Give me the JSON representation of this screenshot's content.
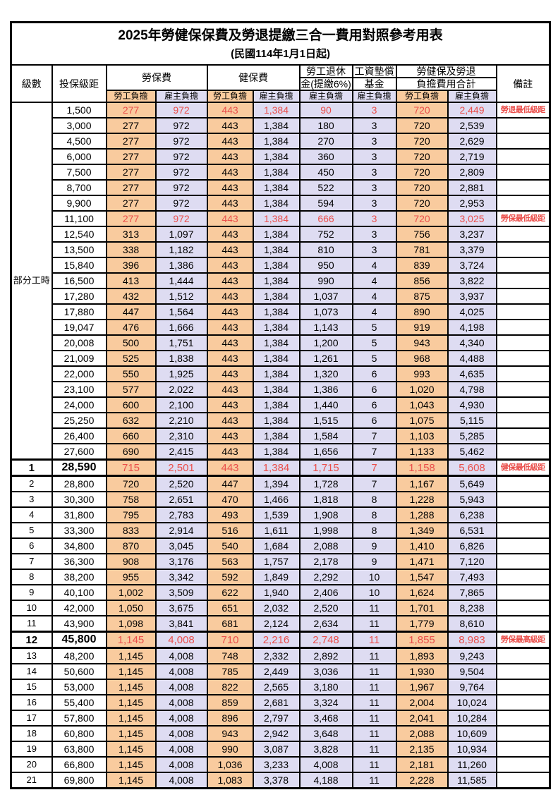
{
  "title": "2025年勞健保保費及勞退提繳三合一費用對照參考用表",
  "subtitle": "(民國114年1月1日起)",
  "colors": {
    "employee_column_bg": "#F9CB9E",
    "employer_column_bg": "#DEDCF2",
    "highlight_text": "#EA4F4B",
    "grid_line": "#000000"
  },
  "header": {
    "level": "級數",
    "salary": "投保級距",
    "labor_insurance": "勞保費",
    "health_insurance": "健保費",
    "pension_line1": "勞工退休",
    "pension_line2": "金(提繳6%)",
    "wage_fund_line1": "工資墊償",
    "wage_fund_line2": "基金",
    "total_line1": "勞健保及勞退",
    "total_line2": "負擔費用合計",
    "remark": "備註",
    "employee": "勞工負擔",
    "employer": "雇主負擔"
  },
  "group_label": "部分工時",
  "rows": [
    {
      "level": "",
      "salary": "1,500",
      "values": [
        "277",
        "972",
        "443",
        "1,384",
        "90",
        "3",
        "720",
        "2,449"
      ],
      "remark": "勞退最低級距",
      "red": true,
      "em": false
    },
    {
      "level": "",
      "salary": "3,000",
      "values": [
        "277",
        "972",
        "443",
        "1,384",
        "180",
        "3",
        "720",
        "2,539"
      ],
      "remark": "",
      "red": false,
      "em": false
    },
    {
      "level": "",
      "salary": "4,500",
      "values": [
        "277",
        "972",
        "443",
        "1,384",
        "270",
        "3",
        "720",
        "2,629"
      ],
      "remark": "",
      "red": false,
      "em": false
    },
    {
      "level": "",
      "salary": "6,000",
      "values": [
        "277",
        "972",
        "443",
        "1,384",
        "360",
        "3",
        "720",
        "2,719"
      ],
      "remark": "",
      "red": false,
      "em": false
    },
    {
      "level": "",
      "salary": "7,500",
      "values": [
        "277",
        "972",
        "443",
        "1,384",
        "450",
        "3",
        "720",
        "2,809"
      ],
      "remark": "",
      "red": false,
      "em": false
    },
    {
      "level": "",
      "salary": "8,700",
      "values": [
        "277",
        "972",
        "443",
        "1,384",
        "522",
        "3",
        "720",
        "2,881"
      ],
      "remark": "",
      "red": false,
      "em": false
    },
    {
      "level": "",
      "salary": "9,900",
      "values": [
        "277",
        "972",
        "443",
        "1,384",
        "594",
        "3",
        "720",
        "2,953"
      ],
      "remark": "",
      "red": false,
      "em": false
    },
    {
      "level": "",
      "salary": "11,100",
      "values": [
        "277",
        "972",
        "443",
        "1,384",
        "666",
        "3",
        "720",
        "3,025"
      ],
      "remark": "勞保最低級距",
      "red": true,
      "em": false
    },
    {
      "level": "",
      "salary": "12,540",
      "values": [
        "313",
        "1,097",
        "443",
        "1,384",
        "752",
        "3",
        "756",
        "3,237"
      ],
      "remark": "",
      "red": false,
      "em": false
    },
    {
      "level": "",
      "salary": "13,500",
      "values": [
        "338",
        "1,182",
        "443",
        "1,384",
        "810",
        "3",
        "781",
        "3,379"
      ],
      "remark": "",
      "red": false,
      "em": false
    },
    {
      "level": "",
      "salary": "15,840",
      "values": [
        "396",
        "1,386",
        "443",
        "1,384",
        "950",
        "4",
        "839",
        "3,724"
      ],
      "remark": "",
      "red": false,
      "em": false
    },
    {
      "level": "",
      "salary": "16,500",
      "values": [
        "413",
        "1,444",
        "443",
        "1,384",
        "990",
        "4",
        "856",
        "3,822"
      ],
      "remark": "",
      "red": false,
      "em": false
    },
    {
      "level": "",
      "salary": "17,280",
      "values": [
        "432",
        "1,512",
        "443",
        "1,384",
        "1,037",
        "4",
        "875",
        "3,937"
      ],
      "remark": "",
      "red": false,
      "em": false
    },
    {
      "level": "",
      "salary": "17,880",
      "values": [
        "447",
        "1,564",
        "443",
        "1,384",
        "1,073",
        "4",
        "890",
        "4,025"
      ],
      "remark": "",
      "red": false,
      "em": false
    },
    {
      "level": "",
      "salary": "19,047",
      "values": [
        "476",
        "1,666",
        "443",
        "1,384",
        "1,143",
        "5",
        "919",
        "4,198"
      ],
      "remark": "",
      "red": false,
      "em": false
    },
    {
      "level": "",
      "salary": "20,008",
      "values": [
        "500",
        "1,751",
        "443",
        "1,384",
        "1,200",
        "5",
        "943",
        "4,340"
      ],
      "remark": "",
      "red": false,
      "em": false
    },
    {
      "level": "",
      "salary": "21,009",
      "values": [
        "525",
        "1,838",
        "443",
        "1,384",
        "1,261",
        "5",
        "968",
        "4,488"
      ],
      "remark": "",
      "red": false,
      "em": false
    },
    {
      "level": "",
      "salary": "22,000",
      "values": [
        "550",
        "1,925",
        "443",
        "1,384",
        "1,320",
        "6",
        "993",
        "4,635"
      ],
      "remark": "",
      "red": false,
      "em": false
    },
    {
      "level": "",
      "salary": "23,100",
      "values": [
        "577",
        "2,022",
        "443",
        "1,384",
        "1,386",
        "6",
        "1,020",
        "4,798"
      ],
      "remark": "",
      "red": false,
      "em": false
    },
    {
      "level": "",
      "salary": "24,000",
      "values": [
        "600",
        "2,100",
        "443",
        "1,384",
        "1,440",
        "6",
        "1,043",
        "4,930"
      ],
      "remark": "",
      "red": false,
      "em": false
    },
    {
      "level": "",
      "salary": "25,250",
      "values": [
        "632",
        "2,210",
        "443",
        "1,384",
        "1,515",
        "6",
        "1,075",
        "5,115"
      ],
      "remark": "",
      "red": false,
      "em": false
    },
    {
      "level": "",
      "salary": "26,400",
      "values": [
        "660",
        "2,310",
        "443",
        "1,384",
        "1,584",
        "7",
        "1,103",
        "5,285"
      ],
      "remark": "",
      "red": false,
      "em": false
    },
    {
      "level": "",
      "salary": "27,600",
      "values": [
        "690",
        "2,415",
        "443",
        "1,384",
        "1,656",
        "7",
        "1,133",
        "5,462"
      ],
      "remark": "",
      "red": false,
      "em": false
    },
    {
      "level": "1",
      "salary": "28,590",
      "values": [
        "715",
        "2,501",
        "443",
        "1,384",
        "1,715",
        "7",
        "1,158",
        "5,608"
      ],
      "remark": "健保最低級距",
      "red": true,
      "em": true
    },
    {
      "level": "2",
      "salary": "28,800",
      "values": [
        "720",
        "2,520",
        "447",
        "1,394",
        "1,728",
        "7",
        "1,167",
        "5,649"
      ],
      "remark": "",
      "red": false,
      "em": false
    },
    {
      "level": "3",
      "salary": "30,300",
      "values": [
        "758",
        "2,651",
        "470",
        "1,466",
        "1,818",
        "8",
        "1,228",
        "5,943"
      ],
      "remark": "",
      "red": false,
      "em": false
    },
    {
      "level": "4",
      "salary": "31,800",
      "values": [
        "795",
        "2,783",
        "493",
        "1,539",
        "1,908",
        "8",
        "1,288",
        "6,238"
      ],
      "remark": "",
      "red": false,
      "em": false
    },
    {
      "level": "5",
      "salary": "33,300",
      "values": [
        "833",
        "2,914",
        "516",
        "1,611",
        "1,998",
        "8",
        "1,349",
        "6,531"
      ],
      "remark": "",
      "red": false,
      "em": false
    },
    {
      "level": "6",
      "salary": "34,800",
      "values": [
        "870",
        "3,045",
        "540",
        "1,684",
        "2,088",
        "9",
        "1,410",
        "6,826"
      ],
      "remark": "",
      "red": false,
      "em": false
    },
    {
      "level": "7",
      "salary": "36,300",
      "values": [
        "908",
        "3,176",
        "563",
        "1,757",
        "2,178",
        "9",
        "1,471",
        "7,120"
      ],
      "remark": "",
      "red": false,
      "em": false
    },
    {
      "level": "8",
      "salary": "38,200",
      "values": [
        "955",
        "3,342",
        "592",
        "1,849",
        "2,292",
        "10",
        "1,547",
        "7,493"
      ],
      "remark": "",
      "red": false,
      "em": false
    },
    {
      "level": "9",
      "salary": "40,100",
      "values": [
        "1,002",
        "3,509",
        "622",
        "1,940",
        "2,406",
        "10",
        "1,624",
        "7,865"
      ],
      "remark": "",
      "red": false,
      "em": false
    },
    {
      "level": "10",
      "salary": "42,000",
      "values": [
        "1,050",
        "3,675",
        "651",
        "2,032",
        "2,520",
        "11",
        "1,701",
        "8,238"
      ],
      "remark": "",
      "red": false,
      "em": false
    },
    {
      "level": "11",
      "salary": "43,900",
      "values": [
        "1,098",
        "3,841",
        "681",
        "2,124",
        "2,634",
        "11",
        "1,779",
        "8,610"
      ],
      "remark": "",
      "red": false,
      "em": false
    },
    {
      "level": "12",
      "salary": "45,800",
      "values": [
        "1,145",
        "4,008",
        "710",
        "2,216",
        "2,748",
        "11",
        "1,855",
        "8,983"
      ],
      "remark": "勞保最高級距",
      "red": true,
      "em": true
    },
    {
      "level": "13",
      "salary": "48,200",
      "values": [
        "1,145",
        "4,008",
        "748",
        "2,332",
        "2,892",
        "11",
        "1,893",
        "9,243"
      ],
      "remark": "",
      "red": false,
      "em": false
    },
    {
      "level": "14",
      "salary": "50,600",
      "values": [
        "1,145",
        "4,008",
        "785",
        "2,449",
        "3,036",
        "11",
        "1,930",
        "9,504"
      ],
      "remark": "",
      "red": false,
      "em": false
    },
    {
      "level": "15",
      "salary": "53,000",
      "values": [
        "1,145",
        "4,008",
        "822",
        "2,565",
        "3,180",
        "11",
        "1,967",
        "9,764"
      ],
      "remark": "",
      "red": false,
      "em": false
    },
    {
      "level": "16",
      "salary": "55,400",
      "values": [
        "1,145",
        "4,008",
        "859",
        "2,681",
        "3,324",
        "11",
        "2,004",
        "10,024"
      ],
      "remark": "",
      "red": false,
      "em": false
    },
    {
      "level": "17",
      "salary": "57,800",
      "values": [
        "1,145",
        "4,008",
        "896",
        "2,797",
        "3,468",
        "11",
        "2,041",
        "10,284"
      ],
      "remark": "",
      "red": false,
      "em": false
    },
    {
      "level": "18",
      "salary": "60,800",
      "values": [
        "1,145",
        "4,008",
        "943",
        "2,942",
        "3,648",
        "11",
        "2,088",
        "10,609"
      ],
      "remark": "",
      "red": false,
      "em": false
    },
    {
      "level": "19",
      "salary": "63,800",
      "values": [
        "1,145",
        "4,008",
        "990",
        "3,087",
        "3,828",
        "11",
        "2,135",
        "10,934"
      ],
      "remark": "",
      "red": false,
      "em": false
    },
    {
      "level": "20",
      "salary": "66,800",
      "values": [
        "1,145",
        "4,008",
        "1,036",
        "3,233",
        "4,008",
        "11",
        "2,181",
        "11,260"
      ],
      "remark": "",
      "red": false,
      "em": false
    },
    {
      "level": "21",
      "salary": "69,800",
      "values": [
        "1,145",
        "4,008",
        "1,083",
        "3,378",
        "4,188",
        "11",
        "2,228",
        "11,585"
      ],
      "remark": "",
      "red": false,
      "em": false
    }
  ]
}
